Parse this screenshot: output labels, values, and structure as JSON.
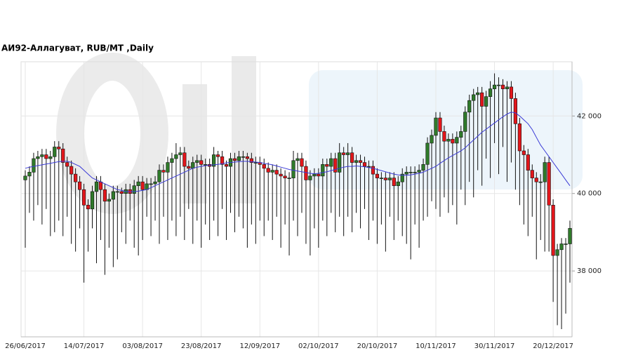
{
  "chart_data": {
    "type": "candlestick",
    "title": "АИ92-Аллагуват,  RUB/MT ,Daily",
    "categories": [
      "26/06/2017",
      null,
      null,
      null,
      null,
      null,
      null,
      null,
      null,
      null,
      null,
      null,
      null,
      null,
      "14/07/2017",
      null,
      null,
      null,
      null,
      null,
      null,
      null,
      null,
      null,
      null,
      null,
      null,
      null,
      "03/08/2017",
      null,
      null,
      null,
      null,
      null,
      null,
      null,
      null,
      null,
      null,
      null,
      null,
      null,
      "23/08/2017",
      null,
      null,
      null,
      null,
      null,
      null,
      null,
      null,
      null,
      null,
      null,
      null,
      null,
      "12/09/2017",
      null,
      null,
      null,
      null,
      null,
      null,
      null,
      null,
      null,
      null,
      null,
      null,
      null,
      "02/10/2017",
      null,
      null,
      null,
      null,
      null,
      null,
      null,
      null,
      null,
      null,
      null,
      null,
      null,
      "20/10/2017",
      null,
      null,
      null,
      null,
      null,
      null,
      null,
      null,
      null,
      null,
      null,
      null,
      null,
      "10/11/2017",
      null,
      null,
      null,
      null,
      null,
      null,
      null,
      null,
      null,
      null,
      null,
      null,
      null,
      "30/11/2017",
      null,
      null,
      null,
      null,
      null,
      null,
      null,
      null,
      null,
      null,
      null,
      null,
      null,
      "20/12/2017",
      null,
      null,
      null,
      null
    ],
    "open": [
      40350,
      40450,
      40550,
      40900,
      40950,
      41000,
      40900,
      40950,
      41200,
      41150,
      40800,
      40700,
      40500,
      40300,
      40100,
      39700,
      39600,
      40050,
      40300,
      40100,
      39800,
      39850,
      40050,
      40050,
      40000,
      40100,
      40000,
      40200,
      40300,
      40100,
      40250,
      40250,
      40300,
      40600,
      40550,
      40800,
      40900,
      41000,
      41050,
      40700,
      40650,
      40800,
      40850,
      40750,
      40750,
      40700,
      41000,
      40950,
      40750,
      40700,
      40900,
      40850,
      40950,
      40950,
      40900,
      40800,
      40800,
      40750,
      40650,
      40550,
      40600,
      40500,
      40450,
      40400,
      40400,
      40850,
      40900,
      40700,
      40350,
      40450,
      40500,
      40450,
      40750,
      40700,
      40900,
      40550,
      41050,
      41000,
      41050,
      40800,
      40850,
      40800,
      40700,
      40700,
      40500,
      40400,
      40400,
      40350,
      40400,
      40200,
      40300,
      40500,
      40550,
      40550,
      40550,
      40600,
      40750,
      41300,
      41500,
      41950,
      41600,
      41350,
      41400,
      41300,
      41450,
      41600,
      42100,
      42400,
      42550,
      42600,
      42250,
      42500,
      42700,
      42800,
      42800,
      42700,
      42750,
      42450,
      41800,
      41100,
      41000,
      40600,
      40400,
      40300,
      40300,
      40800,
      39700,
      38400,
      38550,
      38700,
      38700
    ],
    "high": [
      40600,
      40700,
      41050,
      41100,
      41150,
      41150,
      41100,
      41350,
      41350,
      41300,
      40950,
      40850,
      40650,
      40450,
      40250,
      39850,
      40200,
      40450,
      40450,
      40250,
      40000,
      40200,
      40200,
      40150,
      40250,
      40250,
      40350,
      40450,
      40450,
      40400,
      40400,
      40450,
      40750,
      40750,
      40950,
      41050,
      41300,
      41200,
      41200,
      40850,
      40950,
      41000,
      41000,
      40900,
      40900,
      41200,
      41100,
      41100,
      40850,
      41050,
      41050,
      41100,
      41100,
      41050,
      41050,
      40950,
      40950,
      40900,
      40800,
      40750,
      40750,
      40650,
      40600,
      40550,
      41100,
      41050,
      41050,
      40850,
      40600,
      40650,
      40650,
      40900,
      40900,
      41050,
      41050,
      41300,
      41200,
      41300,
      41200,
      41000,
      41000,
      40950,
      40850,
      40850,
      40650,
      40550,
      40550,
      40550,
      40550,
      40450,
      40650,
      40700,
      40700,
      40700,
      40750,
      40900,
      41450,
      41650,
      42100,
      42100,
      41750,
      41550,
      41550,
      41600,
      41750,
      42250,
      42550,
      42700,
      42750,
      42750,
      42650,
      42900,
      43100,
      43000,
      42950,
      42900,
      42900,
      42600,
      41950,
      41250,
      41150,
      40750,
      40550,
      40500,
      40950,
      40950,
      39850,
      38700,
      38850,
      38850,
      39300
    ],
    "low": [
      38600,
      39500,
      39300,
      39700,
      39200,
      39600,
      38900,
      39000,
      39300,
      38900,
      39400,
      38700,
      38500,
      39100,
      37700,
      38500,
      39100,
      38200,
      38800,
      37900,
      38600,
      38100,
      38300,
      39000,
      38700,
      39300,
      38600,
      38400,
      38800,
      39400,
      38900,
      39300,
      38700,
      39400,
      38800,
      39300,
      38900,
      39400,
      38800,
      39600,
      38700,
      39300,
      38600,
      39200,
      38800,
      39300,
      38900,
      39600,
      38800,
      39500,
      39000,
      39400,
      39100,
      38600,
      39200,
      38700,
      39300,
      38900,
      39300,
      38800,
      39400,
      38600,
      39200,
      38400,
      39300,
      38900,
      39500,
      38700,
      38400,
      39100,
      38600,
      39300,
      38900,
      39500,
      39000,
      39400,
      38900,
      39400,
      39000,
      39500,
      39100,
      39600,
      38800,
      39300,
      38700,
      39200,
      38500,
      39400,
      38800,
      39300,
      38900,
      38700,
      38300,
      39200,
      38600,
      39300,
      39400,
      39800,
      39600,
      39400,
      39900,
      39500,
      39700,
      39200,
      40100,
      39700,
      40300,
      39900,
      40600,
      40200,
      40900,
      40400,
      41300,
      40500,
      41200,
      40300,
      40800,
      40100,
      39700,
      39200,
      38900,
      39400,
      38300,
      38800,
      38500,
      38500,
      37200,
      36600,
      36500,
      36900,
      37700
    ],
    "close": [
      40450,
      40550,
      40900,
      40950,
      41000,
      40900,
      40950,
      41200,
      41150,
      40800,
      40700,
      40500,
      40300,
      40100,
      39700,
      39600,
      40050,
      40300,
      40100,
      39800,
      39850,
      40050,
      40050,
      40000,
      40100,
      40000,
      40200,
      40300,
      40100,
      40250,
      40250,
      40300,
      40600,
      40550,
      40800,
      40900,
      41000,
      41050,
      40700,
      40650,
      40800,
      40850,
      40750,
      40750,
      40700,
      41000,
      40950,
      40750,
      40700,
      40900,
      40850,
      40950,
      40950,
      40900,
      40800,
      40800,
      40750,
      40650,
      40550,
      40600,
      40500,
      40450,
      40400,
      40400,
      40850,
      40900,
      40700,
      40350,
      40450,
      40500,
      40450,
      40750,
      40700,
      40900,
      40550,
      41050,
      41000,
      41050,
      40800,
      40850,
      40800,
      40700,
      40700,
      40500,
      40400,
      40400,
      40350,
      40400,
      40200,
      40300,
      40500,
      40550,
      40550,
      40550,
      40600,
      40750,
      41300,
      41500,
      41950,
      41600,
      41350,
      41400,
      41300,
      41450,
      41600,
      42100,
      42400,
      42550,
      42600,
      42250,
      42500,
      42700,
      42800,
      42800,
      42700,
      42750,
      42450,
      41800,
      41100,
      41000,
      40600,
      40400,
      40300,
      40300,
      40800,
      39700,
      38400,
      38550,
      38700,
      38700,
      39100
    ],
    "ma": [
      40650,
      40680,
      40700,
      40720,
      40740,
      40760,
      40780,
      40800,
      40820,
      40830,
      40830,
      40800,
      40750,
      40700,
      40600,
      40500,
      40400,
      40350,
      40300,
      40250,
      40200,
      40150,
      40100,
      40080,
      40050,
      40050,
      40050,
      40060,
      40080,
      40100,
      40150,
      40200,
      40250,
      40300,
      40350,
      40400,
      40450,
      40500,
      40550,
      40600,
      40650,
      40680,
      40700,
      40720,
      40730,
      40740,
      40750,
      40770,
      40790,
      40800,
      40810,
      40820,
      40830,
      40830,
      40820,
      40810,
      40800,
      40780,
      40760,
      40740,
      40710,
      40680,
      40650,
      40620,
      40600,
      40580,
      40560,
      40540,
      40520,
      40510,
      40520,
      40540,
      40560,
      40590,
      40620,
      40650,
      40680,
      40700,
      40700,
      40710,
      40700,
      40690,
      40670,
      40650,
      40620,
      40590,
      40560,
      40530,
      40500,
      40480,
      40470,
      40470,
      40480,
      40500,
      40520,
      40550,
      40600,
      40650,
      40700,
      40780,
      40850,
      40920,
      40980,
      41040,
      41100,
      41180,
      41280,
      41380,
      41480,
      41580,
      41660,
      41740,
      41820,
      41900,
      41980,
      42050,
      42100,
      42080,
      42000,
      41900,
      41800,
      41650,
      41450,
      41250,
      41100,
      40950,
      40800,
      40650,
      40500,
      40350,
      40200
    ],
    "up_color": "#2f7a2a",
    "down_color": "#e3161b",
    "ma_color": "#3b3bd6",
    "ylim": [
      36300,
      43400
    ],
    "yticks": [
      {
        "value": 38000,
        "label": "38 000"
      },
      {
        "value": 40000,
        "label": "40 000"
      },
      {
        "value": 42000,
        "label": "42 000"
      }
    ],
    "grid": true
  }
}
